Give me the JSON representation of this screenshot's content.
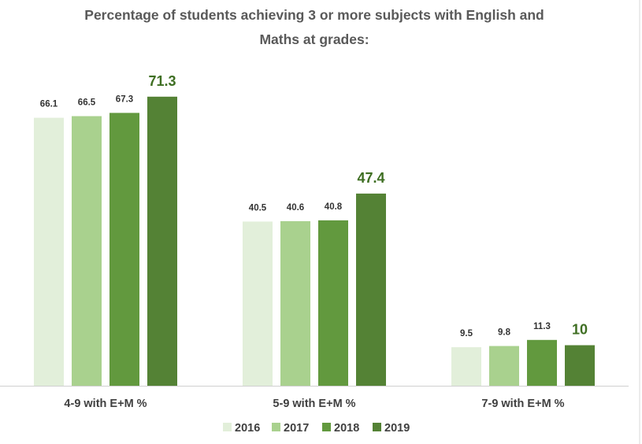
{
  "chart_data": {
    "type": "bar",
    "title": "Percentage of students achieving 3 or more subjects with English and Maths at grades:",
    "title_lines": [
      "Percentage of students achieving 3 or more subjects with English and",
      "Maths at grades:"
    ],
    "categories": [
      "4-9 with E+M %",
      "5-9 with E+M %",
      "7-9 with E+M %"
    ],
    "series": [
      {
        "name": "2016",
        "values": [
          66.1,
          40.5,
          9.5
        ],
        "color": "#e2efda"
      },
      {
        "name": "2017",
        "values": [
          66.5,
          40.6,
          9.8
        ],
        "color": "#a9d18e"
      },
      {
        "name": "2018",
        "values": [
          67.3,
          40.8,
          11.3
        ],
        "color": "#62993e"
      },
      {
        "name": "2019",
        "values": [
          71.3,
          47.4,
          10
        ],
        "color": "#548235"
      }
    ],
    "highlight_series": "2019",
    "ylim": [
      0,
      80
    ],
    "grid": false,
    "legend": "bottom",
    "xlabel": "",
    "ylabel": ""
  }
}
